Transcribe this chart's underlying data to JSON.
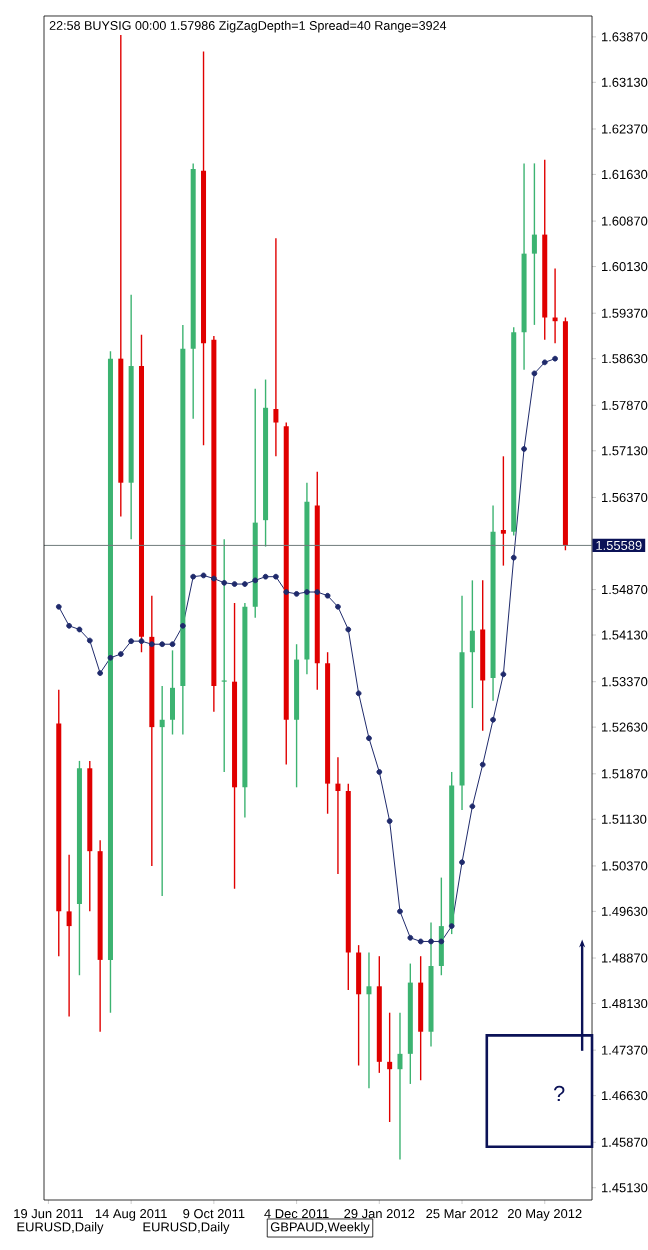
{
  "chart_data": {
    "type": "candlestick",
    "title": "22:58 BUYSIG 00:00 1.57986 ZigZagDepth=1 Spread=40 Range=3924",
    "x": [
      "2011-06-26",
      "2011-07-03",
      "2011-07-10",
      "2011-07-17",
      "2011-07-24",
      "2011-07-31",
      "2011-08-07",
      "2011-08-14",
      "2011-08-21",
      "2011-08-28",
      "2011-09-04",
      "2011-09-11",
      "2011-09-18",
      "2011-09-25",
      "2011-10-02",
      "2011-10-09",
      "2011-10-16",
      "2011-10-23",
      "2011-10-30",
      "2011-11-06",
      "2011-11-13",
      "2011-11-20",
      "2011-11-27",
      "2011-12-04",
      "2011-12-11",
      "2011-12-18",
      "2011-12-25",
      "2012-01-01",
      "2012-01-08",
      "2012-01-15",
      "2012-01-22",
      "2012-01-29",
      "2012-02-05",
      "2012-02-12",
      "2012-02-19",
      "2012-02-26",
      "2012-03-04",
      "2012-03-11",
      "2012-03-18",
      "2012-03-25",
      "2012-04-01",
      "2012-04-08",
      "2012-04-15",
      "2012-04-22",
      "2012-04-29",
      "2012-05-06",
      "2012-05-13",
      "2012-05-20",
      "2012-05-27",
      "2012-06-03"
    ],
    "ohlc": [
      [
        1.5269,
        1.5324,
        1.489,
        1.4963
      ],
      [
        1.4963,
        1.5055,
        1.4792,
        1.4939
      ],
      [
        1.4975,
        1.5208,
        1.4859,
        1.5196
      ],
      [
        1.5196,
        1.5208,
        1.4963,
        1.5061
      ],
      [
        1.5061,
        1.5079,
        1.4767,
        1.4884
      ],
      [
        1.4884,
        1.5875,
        1.4798,
        1.5863
      ],
      [
        1.5863,
        1.639,
        1.5606,
        1.5661
      ],
      [
        1.5661,
        1.5967,
        1.5569,
        1.5851
      ],
      [
        1.5851,
        1.5902,
        1.5385,
        1.541
      ],
      [
        1.541,
        1.5477,
        1.5037,
        1.5263
      ],
      [
        1.5263,
        1.533,
        1.4988,
        1.5275
      ],
      [
        1.5275,
        1.5388,
        1.5251,
        1.5327
      ],
      [
        1.533,
        1.5918,
        1.5251,
        1.5879
      ],
      [
        1.5879,
        1.6181,
        1.5765,
        1.6172
      ],
      [
        1.6169,
        1.6363,
        1.5722,
        1.5888
      ],
      [
        1.5894,
        1.59,
        1.5288,
        1.533
      ],
      [
        1.5337,
        1.5569,
        1.519,
        1.5339
      ],
      [
        1.5337,
        1.5465,
        1.5,
        1.5165
      ],
      [
        1.5165,
        1.5465,
        1.5116,
        1.5459
      ],
      [
        1.5459,
        1.5814,
        1.5441,
        1.5596
      ],
      [
        1.56,
        1.5829,
        1.5557,
        1.5783
      ],
      [
        1.5781,
        1.6059,
        1.5704,
        1.5759
      ],
      [
        1.5753,
        1.5759,
        1.5202,
        1.5275
      ],
      [
        1.5275,
        1.5398,
        1.5165,
        1.5373
      ],
      [
        1.5373,
        1.5661,
        1.5349,
        1.563
      ],
      [
        1.5624,
        1.5679,
        1.5324,
        1.5367
      ],
      [
        1.5367,
        1.5385,
        1.5122,
        1.5171
      ],
      [
        1.5171,
        1.5214,
        1.5024,
        1.5159
      ],
      [
        1.5159,
        1.5171,
        1.4835,
        1.4896
      ],
      [
        1.4896,
        1.4908,
        1.4712,
        1.4828
      ],
      [
        1.4828,
        1.4896,
        1.4675,
        1.4841
      ],
      [
        1.4841,
        1.489,
        1.47,
        1.4718
      ],
      [
        1.4718,
        1.4798,
        1.462,
        1.4706
      ],
      [
        1.4706,
        1.4798,
        1.4559,
        1.4731
      ],
      [
        1.4731,
        1.4878,
        1.4682,
        1.4847
      ],
      [
        1.4847,
        1.489,
        1.4688,
        1.4767
      ],
      [
        1.4767,
        1.4945,
        1.4743,
        1.4874
      ],
      [
        1.4874,
        1.5018,
        1.4859,
        1.4939
      ],
      [
        1.4939,
        1.519,
        1.4926,
        1.5168
      ],
      [
        1.5168,
        1.5477,
        1.5128,
        1.5385
      ],
      [
        1.5385,
        1.5502,
        1.5294,
        1.542
      ],
      [
        1.5422,
        1.5502,
        1.5257,
        1.5339
      ],
      [
        1.5343,
        1.5624,
        1.5306,
        1.5581
      ],
      [
        1.5584,
        1.5704,
        1.5526,
        1.5578
      ],
      [
        1.5581,
        1.5914,
        1.5575,
        1.5906
      ],
      [
        1.5906,
        1.6181,
        1.5845,
        1.6034
      ],
      [
        1.6034,
        1.6181,
        1.5918,
        1.6065
      ],
      [
        1.6065,
        1.6187,
        1.5894,
        1.593
      ],
      [
        1.593,
        1.601,
        1.5888,
        1.5924
      ],
      [
        1.5924,
        1.593,
        1.5551,
        1.5559
      ]
    ],
    "colors": [
      "#e00000",
      "#e00000",
      "#3cb371",
      "#e00000",
      "#e00000",
      "#3cb371",
      "#e00000",
      "#3cb371",
      "#e00000",
      "#e00000",
      "#3cb371",
      "#3cb371",
      "#3cb371",
      "#3cb371",
      "#e00000",
      "#e00000",
      "#3cb371",
      "#e00000",
      "#3cb371",
      "#3cb371",
      "#3cb371",
      "#e00000",
      "#e00000",
      "#3cb371",
      "#3cb371",
      "#e00000",
      "#e00000",
      "#e00000",
      "#e00000",
      "#e00000",
      "#3cb371",
      "#e00000",
      "#e00000",
      "#3cb371",
      "#3cb371",
      "#e00000",
      "#3cb371",
      "#3cb371",
      "#3cb371",
      "#3cb371",
      "#3cb371",
      "#e00000",
      "#3cb371",
      "#e00000",
      "#3cb371",
      "#3cb371",
      "#3cb371",
      "#e00000",
      "#e00000",
      "#e00000"
    ],
    "series": [
      {
        "type": "line",
        "color": "#1f2a6b",
        "marker": "circle",
        "x": [
          "2011-06-26",
          "2011-07-03",
          "2011-07-10",
          "2011-07-17",
          "2011-07-24",
          "2011-07-31",
          "2011-08-07",
          "2011-08-14",
          "2011-08-21",
          "2011-08-28",
          "2011-09-04",
          "2011-09-11",
          "2011-09-18",
          "2011-09-25",
          "2011-10-02",
          "2011-10-09",
          "2011-10-16",
          "2011-10-23",
          "2011-10-30",
          "2011-11-06",
          "2011-11-13",
          "2011-11-20",
          "2011-11-27",
          "2011-12-04",
          "2011-12-11",
          "2011-12-18",
          "2011-12-25",
          "2012-01-01",
          "2012-01-08",
          "2012-01-15",
          "2012-01-22",
          "2012-01-29",
          "2012-02-05",
          "2012-02-12",
          "2012-02-19",
          "2012-02-26",
          "2012-03-04",
          "2012-03-11",
          "2012-03-18",
          "2012-03-25",
          "2012-04-01",
          "2012-04-08",
          "2012-04-15",
          "2012-04-22",
          "2012-04-29",
          "2012-05-06",
          "2012-05-13",
          "2012-05-20",
          "2012-05-27"
        ],
        "values": [
          1.5459,
          1.5428,
          1.5422,
          1.5404,
          1.5351,
          1.5376,
          1.5382,
          1.5403,
          1.5403,
          1.5398,
          1.5398,
          1.5398,
          1.5428,
          1.5508,
          1.551,
          1.5505,
          1.5498,
          1.5496,
          1.5496,
          1.5502,
          1.5508,
          1.5508,
          1.5483,
          1.548,
          1.5483,
          1.5483,
          1.5477,
          1.5459,
          1.5422,
          1.5318,
          1.5245,
          1.519,
          1.511,
          1.4963,
          1.492,
          1.4914,
          1.4914,
          1.4914,
          1.4939,
          1.5043,
          1.5134,
          1.5202,
          1.5275,
          1.5349,
          1.5539,
          1.5716,
          1.5839,
          1.5857,
          1.5863
        ]
      }
    ],
    "xlim": [
      "2011-06-16",
      "2012-06-21"
    ],
    "xticks": [
      {
        "value": "2011-06-19",
        "label": "19 Jun 2011"
      },
      {
        "value": "2011-08-14",
        "label": "14 Aug 2011"
      },
      {
        "value": "2011-10-09",
        "label": "9 Oct 2011"
      },
      {
        "value": "2011-12-04",
        "label": "4 Dec 2011"
      },
      {
        "value": "2012-01-29",
        "label": "29 Jan 2012"
      },
      {
        "value": "2012-03-25",
        "label": "25 Mar 2012"
      },
      {
        "value": "2012-05-20",
        "label": "20 May 2012"
      }
    ],
    "ylim": [
      1.4493,
      1.6421
    ],
    "yticks": [
      {
        "value": 1.6387,
        "label": "1.63870"
      },
      {
        "value": 1.6313,
        "label": "1.63130"
      },
      {
        "value": 1.6237,
        "label": "1.62370"
      },
      {
        "value": 1.6163,
        "label": "1.61630"
      },
      {
        "value": 1.6087,
        "label": "1.60870"
      },
      {
        "value": 1.6013,
        "label": "1.60130"
      },
      {
        "value": 1.5937,
        "label": "1.59370"
      },
      {
        "value": 1.5863,
        "label": "1.58630"
      },
      {
        "value": 1.5787,
        "label": "1.57870"
      },
      {
        "value": 1.5713,
        "label": "1.57130"
      },
      {
        "value": 1.5637,
        "label": "1.56370"
      },
      {
        "value": 1.5487,
        "label": "1.54870"
      },
      {
        "value": 1.5413,
        "label": "1.54130"
      },
      {
        "value": 1.5337,
        "label": "1.53370"
      },
      {
        "value": 1.5263,
        "label": "1.52630"
      },
      {
        "value": 1.5187,
        "label": "1.51870"
      },
      {
        "value": 1.5113,
        "label": "1.51130"
      },
      {
        "value": 1.5037,
        "label": "1.50370"
      },
      {
        "value": 1.4963,
        "label": "1.49630"
      },
      {
        "value": 1.4887,
        "label": "1.48870"
      },
      {
        "value": 1.4813,
        "label": "1.48130"
      },
      {
        "value": 1.4737,
        "label": "1.47370"
      },
      {
        "value": 1.4663,
        "label": "1.46630"
      },
      {
        "value": 1.4587,
        "label": "1.45870"
      },
      {
        "value": 1.4513,
        "label": "1.45130"
      }
    ],
    "ref_lines": [
      {
        "axis": "y",
        "value": 1.55589,
        "label": "1.55589",
        "color": "#6e7b7b"
      }
    ],
    "annotations": [
      "?",
      "EURUSD,Daily",
      "EURUSD,Daily",
      "GBPAUD,Weekly"
    ]
  }
}
